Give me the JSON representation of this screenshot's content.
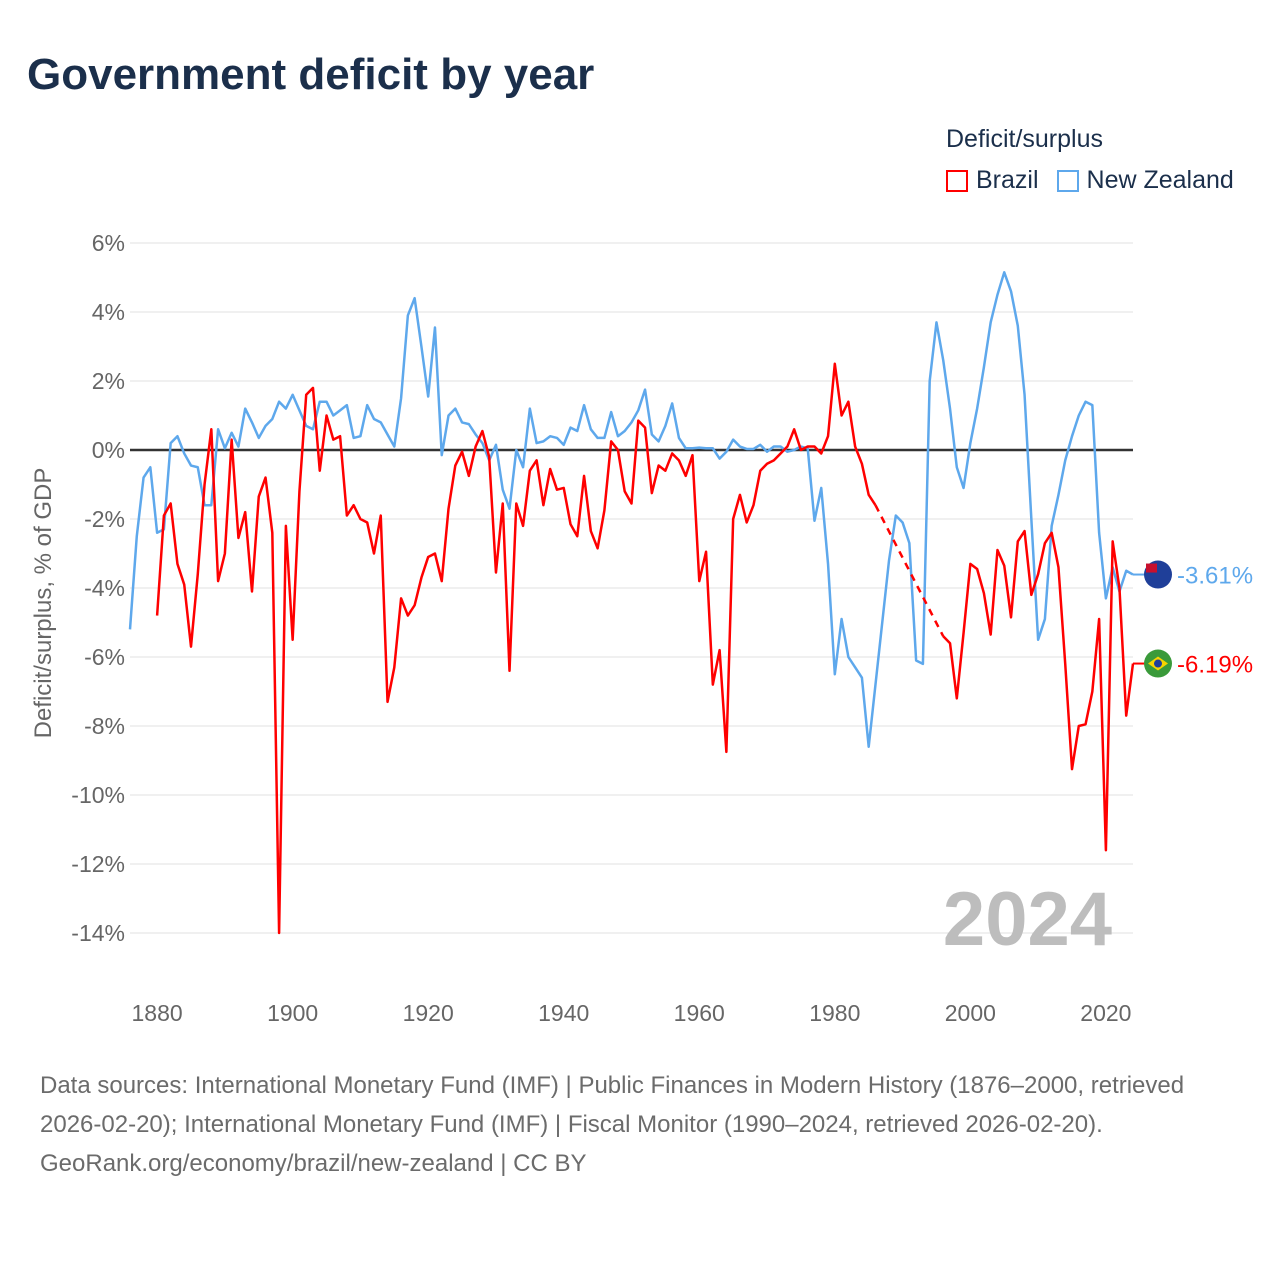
{
  "title": "Government deficit by year",
  "legend": {
    "title": "Deficit/surplus",
    "items": [
      {
        "label": "Brazil",
        "color": "#ff0000"
      },
      {
        "label": "New Zealand",
        "color": "#5ea8ec"
      }
    ]
  },
  "footer": {
    "sources": "Data sources: International Monetary Fund (IMF) | Public Finances in Modern History (1876–2000, retrieved 2026-02-20); International Monetary Fund (IMF) | Fiscal Monitor (1990–2024, retrieved 2026-02-20).",
    "credit": "GeoRank.org/economy/brazil/new-zealand | CC BY"
  },
  "chart_data": {
    "type": "line",
    "title": "Government deficit by year",
    "xlabel": "",
    "ylabel": "Deficit/surplus, % of GDP",
    "xlim": [
      1876,
      2024
    ],
    "ylim": [
      -14,
      6
    ],
    "yticks": [
      6,
      4,
      2,
      0,
      -2,
      -4,
      -6,
      -8,
      -10,
      -12,
      -14
    ],
    "ytick_labels": [
      "6%",
      "4%",
      "2%",
      "0%",
      "-2%",
      "-4%",
      "-6%",
      "-8%",
      "-10%",
      "-12%",
      "-14%"
    ],
    "xticks": [
      1880,
      1900,
      1920,
      1940,
      1960,
      1980,
      2000,
      2020
    ],
    "xtick_labels": [
      "1880",
      "1900",
      "1920",
      "1940",
      "1960",
      "1980",
      "2000",
      "2020"
    ],
    "year_watermark": "2024",
    "x_start": 1876,
    "series": [
      {
        "name": "Brazil",
        "color": "#ff0000",
        "end_label": "-6.19%",
        "values": [
          null,
          null,
          null,
          null,
          -4.8,
          -1.9,
          -1.55,
          -3.3,
          -3.9,
          -5.7,
          -3.6,
          -1.0,
          0.6,
          -3.8,
          -3.0,
          0.3,
          -2.55,
          -1.8,
          -4.1,
          -1.35,
          -0.8,
          -2.4,
          -14.0,
          -2.2,
          -5.5,
          -1.2,
          1.6,
          1.8,
          -0.6,
          1.0,
          0.3,
          0.4,
          -1.9,
          -1.6,
          -2.0,
          -2.1,
          -3.0,
          -1.9,
          -7.3,
          -6.3,
          -4.3,
          -4.8,
          -4.5,
          -3.7,
          -3.1,
          -3.0,
          -3.8,
          -1.7,
          -0.45,
          -0.05,
          -0.75,
          0.1,
          0.55,
          -0.2,
          -3.55,
          -1.55,
          -6.4,
          -1.55,
          -2.2,
          -0.6,
          -0.3,
          -1.6,
          -0.55,
          -1.15,
          -1.1,
          -2.15,
          -2.5,
          -0.75,
          -2.35,
          -2.85,
          -1.75,
          0.25,
          0.0,
          -1.2,
          -1.55,
          0.85,
          0.65,
          -1.25,
          -0.45,
          -0.6,
          -0.1,
          -0.3,
          -0.75,
          -0.15,
          -3.8,
          -2.95,
          -6.8,
          -5.8,
          -8.75,
          -2.0,
          -1.3,
          -2.1,
          -1.6,
          -0.6,
          -0.4,
          -0.3,
          -0.1,
          0.1,
          0.6,
          0.0,
          0.1,
          0.1,
          -0.1,
          0.4,
          2.5,
          1.0,
          1.4,
          0.1,
          -0.4,
          -1.3,
          -1.6,
          null,
          null,
          null,
          null,
          null,
          null,
          null,
          null,
          null,
          -5.4,
          -5.6,
          -7.2,
          -5.3,
          -3.3,
          -3.45,
          -4.15,
          -5.35,
          -2.9,
          -3.35,
          -4.85,
          -2.65,
          -2.35,
          -4.2,
          -3.6,
          -2.7,
          -2.4,
          -3.4,
          -6.2,
          -9.25,
          -8.0,
          -7.95,
          -7.0,
          -4.9,
          -11.6,
          -2.65,
          -4.0,
          -7.7,
          -6.19
        ]
      },
      {
        "name": "New Zealand",
        "color": "#5ea8ec",
        "end_label": "-3.61%",
        "values": [
          -5.2,
          -2.5,
          -0.8,
          -0.5,
          -2.4,
          -2.3,
          0.2,
          0.4,
          -0.1,
          -0.45,
          -0.5,
          -1.6,
          -1.6,
          0.6,
          0.05,
          0.5,
          0.1,
          1.2,
          0.8,
          0.35,
          0.7,
          0.9,
          1.4,
          1.2,
          1.6,
          1.15,
          0.7,
          0.6,
          1.4,
          1.4,
          1.0,
          1.15,
          1.3,
          0.35,
          0.4,
          1.3,
          0.9,
          0.8,
          0.45,
          0.1,
          1.5,
          3.9,
          4.4,
          3.0,
          1.55,
          3.55,
          -0.15,
          1.0,
          1.2,
          0.8,
          0.75,
          0.45,
          0.2,
          -0.3,
          0.15,
          -1.15,
          -1.7,
          0.0,
          -0.5,
          1.2,
          0.2,
          0.25,
          0.4,
          0.35,
          0.15,
          0.65,
          0.55,
          1.3,
          0.6,
          0.35,
          0.35,
          1.1,
          0.4,
          0.55,
          0.8,
          1.15,
          1.75,
          0.45,
          0.25,
          0.7,
          1.35,
          0.35,
          0.05,
          0.05,
          0.07,
          0.05,
          0.05,
          -0.25,
          -0.05,
          0.3,
          0.1,
          0.03,
          0.03,
          0.15,
          -0.05,
          0.1,
          0.1,
          -0.05,
          0.0,
          0.1,
          0.05,
          -2.05,
          -1.1,
          -3.3,
          -6.5,
          -4.9,
          -6.0,
          -6.3,
          -6.6,
          -8.6,
          -6.8,
          -5.0,
          -3.2,
          -1.9,
          -2.1,
          -2.7,
          -6.1,
          -6.2,
          2.0,
          3.7,
          2.6,
          1.2,
          -0.5,
          -1.1,
          0.2,
          1.2,
          2.4,
          3.7,
          4.5,
          5.15,
          4.6,
          3.6,
          1.6,
          -2.0,
          -5.5,
          -4.9,
          -2.2,
          -1.3,
          -0.3,
          0.4,
          1.0,
          1.4,
          1.3,
          -2.4,
          -4.3,
          -3.4,
          -4.1,
          -3.5,
          -3.61
        ]
      }
    ]
  }
}
